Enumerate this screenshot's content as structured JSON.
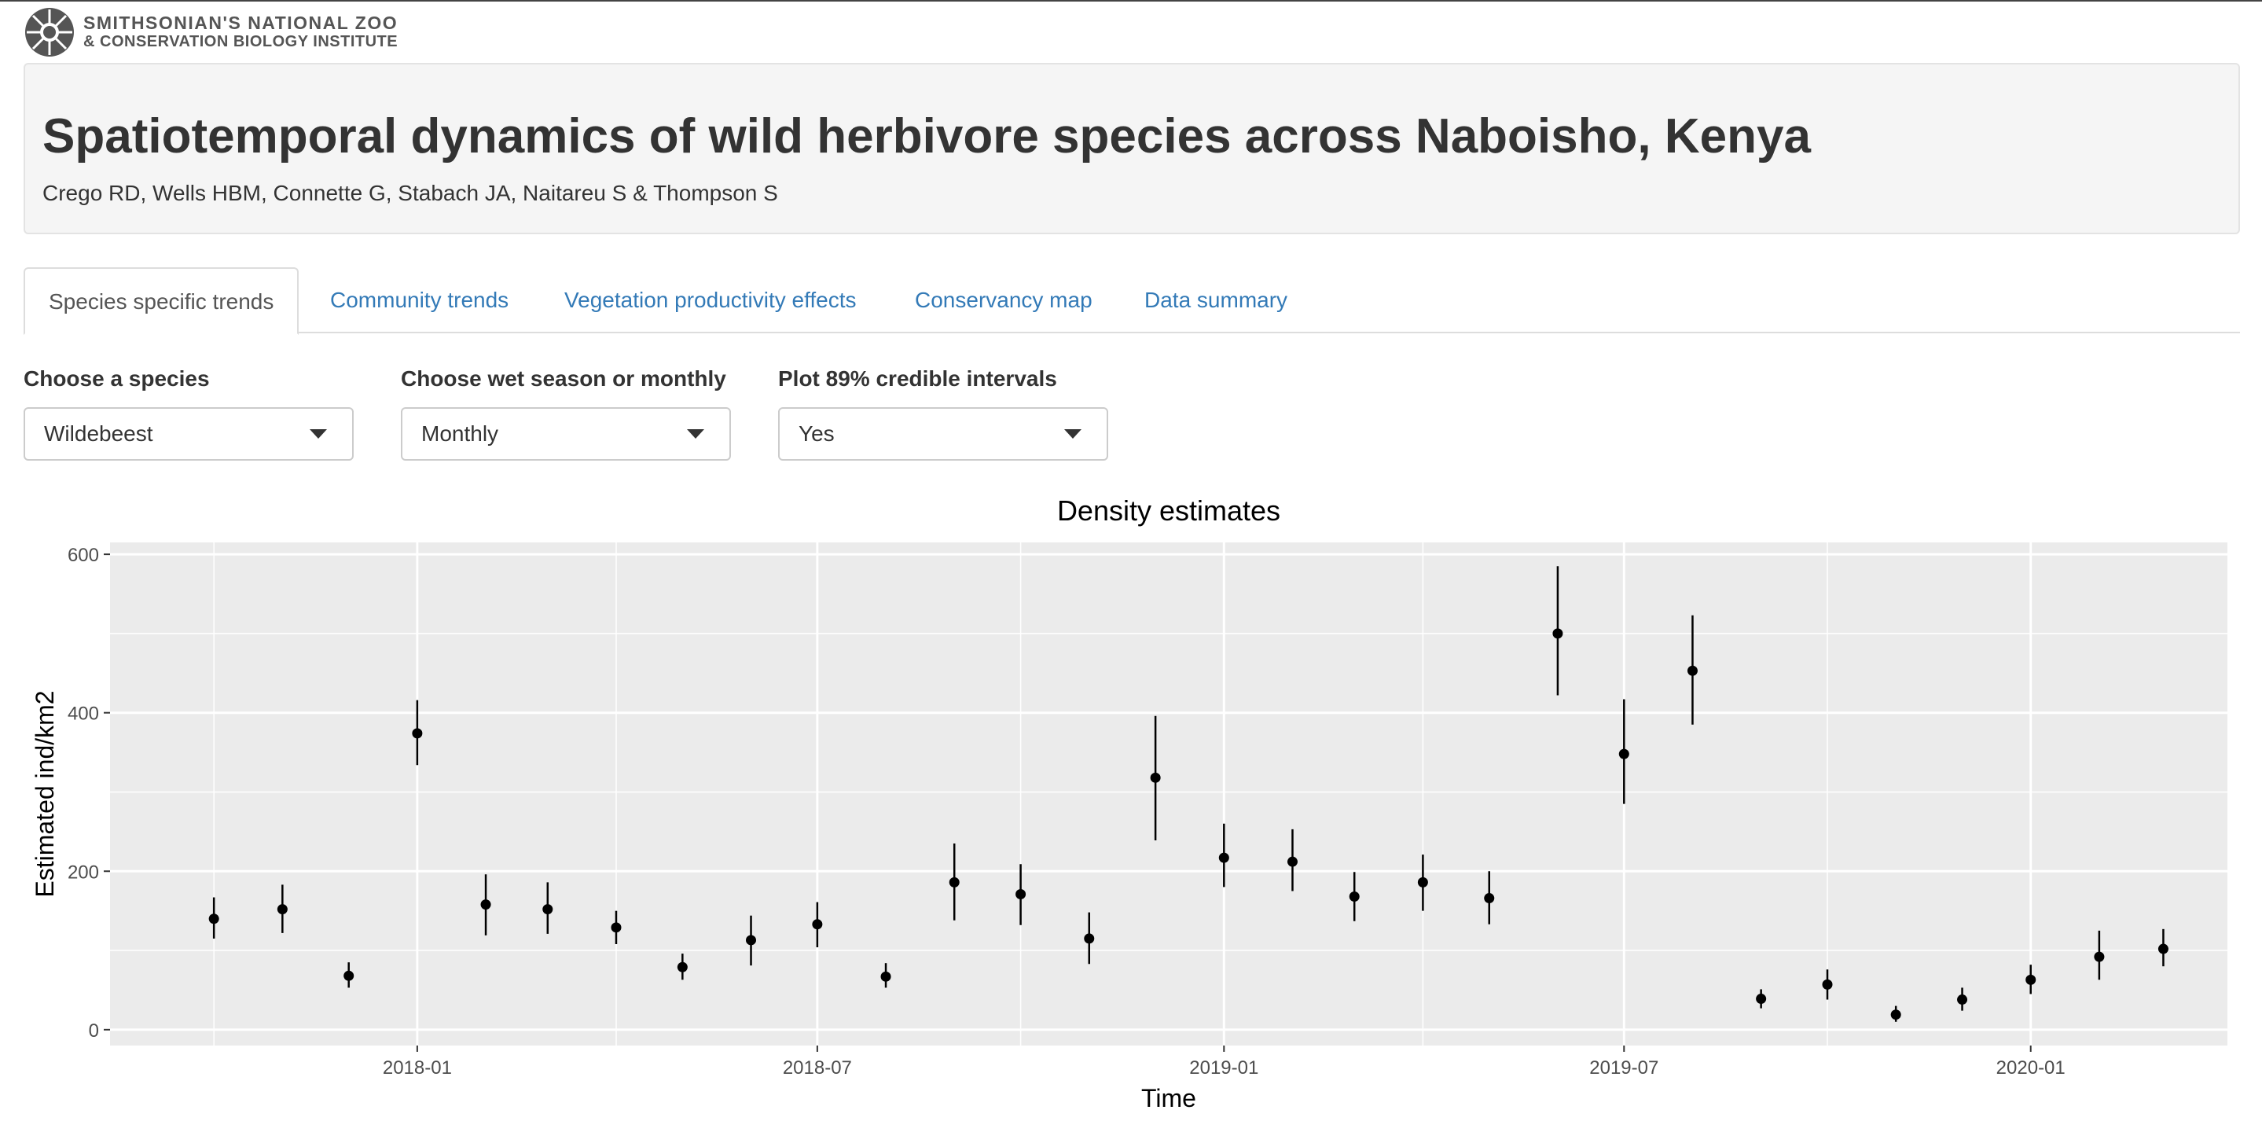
{
  "logo": {
    "line1": "SMITHSONIAN'S NATIONAL ZOO",
    "line2": "& CONSERVATION BIOLOGY INSTITUTE"
  },
  "header": {
    "title": "Spatiotemporal dynamics of wild herbivore species across Naboisho, Kenya",
    "authors": "Crego RD, Wells HBM, Connette G, Stabach JA, Naitareu S & Thompson S"
  },
  "tabs": [
    {
      "label": "Species specific trends",
      "active": true
    },
    {
      "label": "Community trends",
      "active": false
    },
    {
      "label": "Vegetation productivity effects",
      "active": false
    },
    {
      "label": "Conservancy map",
      "active": false
    },
    {
      "label": "Data summary",
      "active": false
    }
  ],
  "controls": {
    "species": {
      "label": "Choose a species",
      "value": "Wildebeest"
    },
    "season": {
      "label": "Choose wet season or monthly",
      "value": "Monthly"
    },
    "intervals": {
      "label": "Plot 89% credible intervals",
      "value": "Yes"
    }
  },
  "chart_data": {
    "type": "scatter",
    "title": "Density estimates",
    "xlabel": "Time",
    "ylabel": "Estimated ind/km2",
    "ylim": [
      -20,
      615
    ],
    "xlim": [
      "2017-08-15",
      "2020-03-30"
    ],
    "grid": true,
    "y_ticks": [
      0,
      200,
      400,
      600
    ],
    "x_ticks": [
      "2018-01",
      "2018-07",
      "2019-01",
      "2019-07",
      "2020-01"
    ],
    "points": [
      {
        "x": "2017-10-01",
        "y": 140,
        "lower": 115,
        "upper": 167
      },
      {
        "x": "2017-11-01",
        "y": 152,
        "lower": 122,
        "upper": 183
      },
      {
        "x": "2017-12-01",
        "y": 68,
        "lower": 53,
        "upper": 85
      },
      {
        "x": "2018-01-01",
        "y": 374,
        "lower": 334,
        "upper": 416
      },
      {
        "x": "2018-02-01",
        "y": 158,
        "lower": 119,
        "upper": 196
      },
      {
        "x": "2018-03-01",
        "y": 152,
        "lower": 121,
        "upper": 186
      },
      {
        "x": "2018-04-01",
        "y": 129,
        "lower": 108,
        "upper": 150
      },
      {
        "x": "2018-05-01",
        "y": 79,
        "lower": 63,
        "upper": 96
      },
      {
        "x": "2018-06-01",
        "y": 113,
        "lower": 81,
        "upper": 144
      },
      {
        "x": "2018-07-01",
        "y": 133,
        "lower": 104,
        "upper": 161
      },
      {
        "x": "2018-08-01",
        "y": 67,
        "lower": 53,
        "upper": 84
      },
      {
        "x": "2018-09-01",
        "y": 186,
        "lower": 138,
        "upper": 235
      },
      {
        "x": "2018-10-01",
        "y": 171,
        "lower": 132,
        "upper": 209
      },
      {
        "x": "2018-11-01",
        "y": 115,
        "lower": 83,
        "upper": 148
      },
      {
        "x": "2018-12-01",
        "y": 318,
        "lower": 239,
        "upper": 396
      },
      {
        "x": "2019-01-01",
        "y": 217,
        "lower": 180,
        "upper": 260
      },
      {
        "x": "2019-02-01",
        "y": 212,
        "lower": 175,
        "upper": 253
      },
      {
        "x": "2019-03-01",
        "y": 168,
        "lower": 137,
        "upper": 199
      },
      {
        "x": "2019-04-01",
        "y": 186,
        "lower": 150,
        "upper": 221
      },
      {
        "x": "2019-05-01",
        "y": 166,
        "lower": 133,
        "upper": 200
      },
      {
        "x": "2019-06-01",
        "y": 500,
        "lower": 422,
        "upper": 585
      },
      {
        "x": "2019-07-01",
        "y": 348,
        "lower": 285,
        "upper": 417
      },
      {
        "x": "2019-08-01",
        "y": 453,
        "lower": 385,
        "upper": 523
      },
      {
        "x": "2019-09-01",
        "y": 39,
        "lower": 27,
        "upper": 51
      },
      {
        "x": "2019-10-01",
        "y": 57,
        "lower": 38,
        "upper": 76
      },
      {
        "x": "2019-11-01",
        "y": 19,
        "lower": 10,
        "upper": 30
      },
      {
        "x": "2019-12-01",
        "y": 38,
        "lower": 24,
        "upper": 53
      },
      {
        "x": "2020-01-01",
        "y": 63,
        "lower": 45,
        "upper": 82
      },
      {
        "x": "2020-02-01",
        "y": 92,
        "lower": 63,
        "upper": 125
      },
      {
        "x": "2020-03-01",
        "y": 102,
        "lower": 80,
        "upper": 127
      }
    ],
    "colors": {
      "panel": "#ebebeb",
      "grid": "#ffffff",
      "point": "#000000",
      "tick_text": "#4d4d4d"
    }
  }
}
